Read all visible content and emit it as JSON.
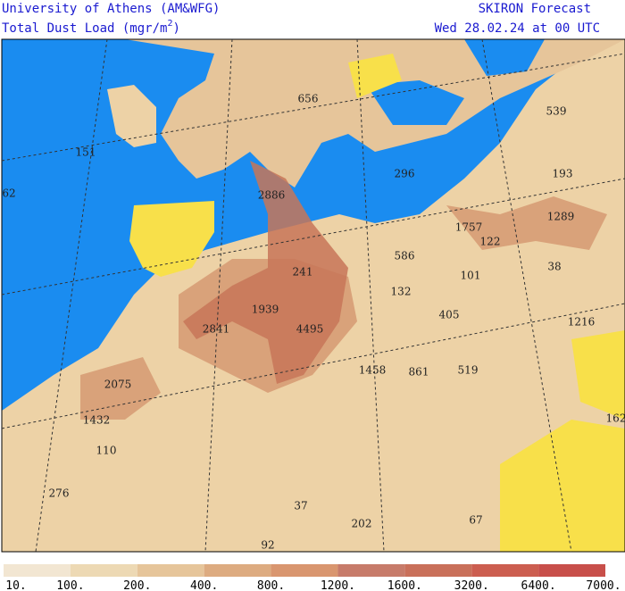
{
  "header": {
    "line1": "University of Athens (AM&WFG)",
    "line2": [
      "Total Dust Load (mgr/m",
      "2",
      ")"
    ],
    "product": "SKIRON Forecast",
    "date": "Wed 28.02.24 at 00 UTC"
  },
  "map_labels": [
    "656",
    "539",
    "151",
    "296",
    "193",
    "62",
    "2886",
    "1289",
    "1757",
    "122",
    "241",
    "586",
    "101",
    "38",
    "132",
    "405",
    "1939",
    "1216",
    "2841",
    "4495",
    "1458",
    "861",
    "519",
    "2075",
    "162",
    "1432",
    "110",
    "276",
    "37",
    "202",
    "67",
    "92"
  ],
  "colorbar": {
    "labels": [
      "10.",
      "100.",
      "200.",
      "400.",
      "800.",
      "1200.",
      "1600.",
      "3200.",
      "6400.",
      "7000."
    ]
  }
}
